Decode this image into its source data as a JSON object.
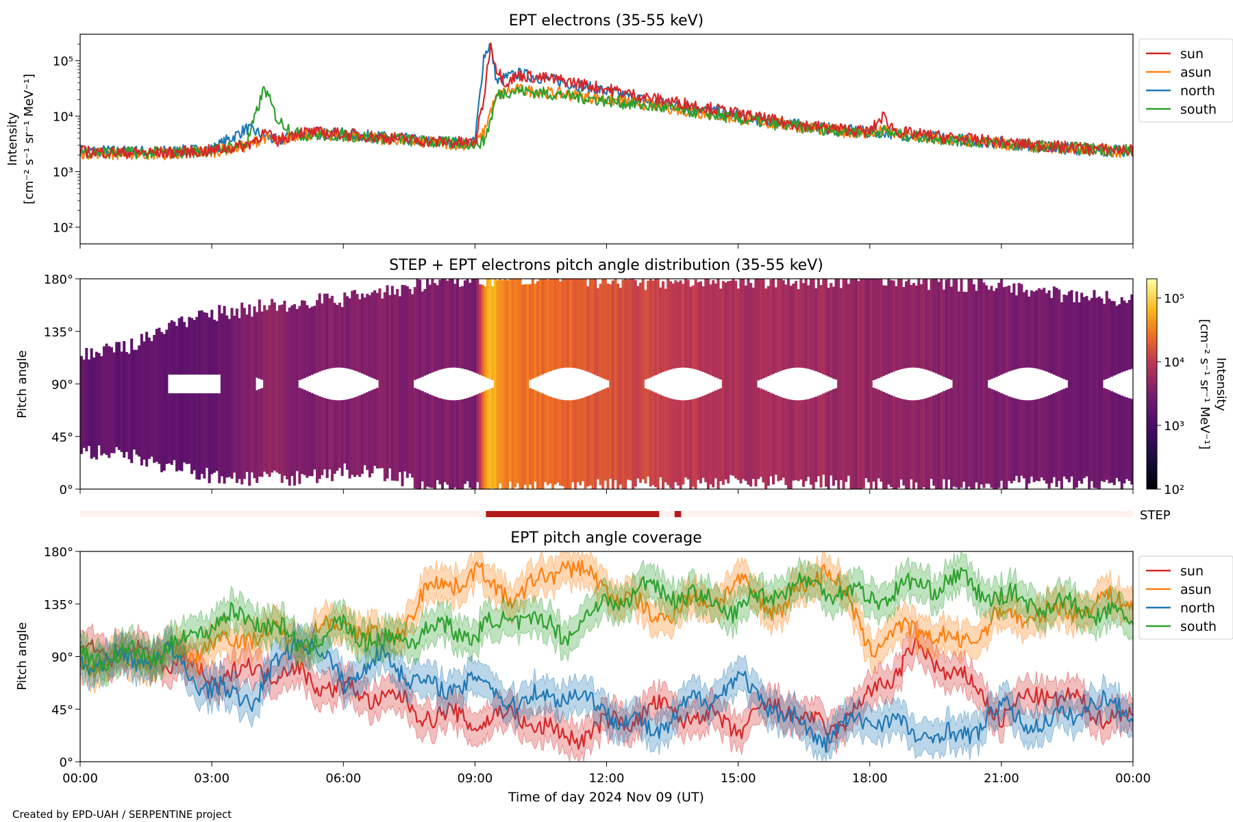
{
  "footer": "Created by EPD-UAH / SERPENTINE project",
  "chart_data": [
    {
      "type": "line",
      "title": "EPT electrons (35-55 keV)",
      "ylabel_lines": [
        "Intensity",
        "[cm⁻² s⁻¹ sr⁻¹ MeV⁻¹]"
      ],
      "yscale": "log",
      "ylim": [
        50,
        300000
      ],
      "yticks": [
        {
          "v": 100,
          "label": "10²"
        },
        {
          "v": 1000,
          "label": "10³"
        },
        {
          "v": 10000,
          "label": "10⁴"
        },
        {
          "v": 100000,
          "label": "10⁵"
        }
      ],
      "x_unit": "hours since 2024-11-09 00:00 UT",
      "xlim": [
        0,
        24
      ],
      "legend_position": "outside-right",
      "series": [
        {
          "name": "sun",
          "color": "#d62728",
          "x": [
            0,
            1,
            2,
            3,
            3.8,
            4.2,
            4.5,
            5,
            6,
            7,
            8,
            9,
            9.2,
            9.35,
            9.5,
            9.7,
            10,
            11,
            12,
            13,
            14,
            15,
            16,
            17,
            18,
            18.3,
            18.6,
            19,
            20,
            21,
            22,
            23,
            24
          ],
          "y": [
            2300,
            2200,
            2200,
            2400,
            3000,
            5000,
            3600,
            5200,
            4800,
            4100,
            3500,
            3300,
            20000,
            200000,
            70000,
            40000,
            55000,
            44000,
            31000,
            21000,
            16000,
            11000,
            7800,
            6200,
            5200,
            10000,
            5300,
            4800,
            4000,
            3400,
            2900,
            2600,
            2400
          ]
        },
        {
          "name": "asun",
          "color": "#ff7f0e",
          "x": [
            0,
            1,
            2,
            3,
            3.8,
            4.2,
            4.5,
            5,
            6,
            7,
            8,
            9,
            9.2,
            9.35,
            9.5,
            9.7,
            10,
            11,
            12,
            13,
            14,
            15,
            16,
            17,
            18,
            18.3,
            18.6,
            19,
            20,
            21,
            22,
            23,
            24
          ],
          "y": [
            2200,
            2100,
            2100,
            2300,
            2900,
            4200,
            3400,
            4800,
            4500,
            3900,
            3300,
            3100,
            5000,
            12000,
            22000,
            28000,
            30000,
            25000,
            20000,
            16000,
            12000,
            9000,
            7000,
            5700,
            4900,
            5500,
            4700,
            4300,
            3700,
            3200,
            2800,
            2500,
            2300
          ]
        },
        {
          "name": "north",
          "color": "#1f77b4",
          "x": [
            0,
            1,
            2,
            3,
            3.8,
            4.2,
            4.5,
            5,
            6,
            7,
            8,
            9,
            9.2,
            9.35,
            9.5,
            9.7,
            10,
            11,
            12,
            13,
            14,
            15,
            16,
            17,
            18,
            18.3,
            18.6,
            19,
            20,
            21,
            22,
            23,
            24
          ],
          "y": [
            2400,
            2300,
            2300,
            2500,
            6000,
            4500,
            3500,
            5000,
            4800,
            4100,
            3500,
            3300,
            120000,
            200000,
            40000,
            50000,
            58000,
            42000,
            28000,
            18000,
            14000,
            10000,
            7500,
            6000,
            5100,
            5300,
            4800,
            4500,
            3800,
            3300,
            2800,
            2500,
            2300
          ]
        },
        {
          "name": "south",
          "color": "#2ca02c",
          "x": [
            0,
            1,
            2,
            3,
            3.8,
            4.2,
            4.5,
            5,
            6,
            7,
            8,
            9,
            9.2,
            9.35,
            9.5,
            9.7,
            10,
            11,
            12,
            13,
            14,
            15,
            16,
            17,
            18,
            18.3,
            18.6,
            19,
            20,
            21,
            22,
            23,
            24
          ],
          "y": [
            2300,
            2200,
            2200,
            2400,
            3200,
            33000,
            8500,
            4600,
            4500,
            4000,
            3400,
            3200,
            3500,
            8000,
            24000,
            27000,
            29000,
            24000,
            19000,
            15000,
            12000,
            9000,
            7000,
            5800,
            5000,
            5400,
            4700,
            4300,
            3700,
            3200,
            2800,
            2600,
            2400
          ]
        }
      ]
    },
    {
      "type": "heatmap",
      "title": "STEP + EPT electrons pitch angle distribution (35-55 keV)",
      "ylabel": "Pitch angle",
      "ylim": [
        0,
        180
      ],
      "yticks": [
        {
          "v": 0,
          "label": "0°"
        },
        {
          "v": 45,
          "label": "45°"
        },
        {
          "v": 90,
          "label": "90°"
        },
        {
          "v": 135,
          "label": "135°"
        },
        {
          "v": 180,
          "label": "180°"
        }
      ],
      "xlim": [
        0,
        24
      ],
      "colormap": "inferno",
      "colorbar": {
        "label_lines": [
          "Intensity",
          "[cm⁻² s⁻¹ sr⁻¹ MeV⁻¹]"
        ],
        "scale": "log",
        "range": [
          100,
          200000
        ],
        "ticks": [
          {
            "v": 100,
            "label": "10²"
          },
          {
            "v": 1000,
            "label": "10³"
          },
          {
            "v": 10000,
            "label": "10⁴"
          },
          {
            "v": 100000,
            "label": "10⁵"
          }
        ]
      },
      "coverage_x": [
        0,
        1,
        2,
        3,
        4,
        5,
        6,
        7,
        8,
        9,
        10,
        11,
        12,
        13,
        14,
        15,
        16,
        17,
        18,
        19,
        20,
        21,
        22,
        23,
        24
      ],
      "coverage_min": [
        32,
        30,
        20,
        10,
        8,
        10,
        15,
        12,
        3,
        0,
        0,
        0,
        2,
        4,
        3,
        8,
        5,
        6,
        3,
        2,
        2,
        4,
        6,
        6,
        4
      ],
      "coverage_max": [
        115,
        120,
        140,
        150,
        155,
        160,
        162,
        168,
        178,
        180,
        180,
        180,
        178,
        177,
        178,
        178,
        178,
        178,
        180,
        178,
        176,
        174,
        168,
        165,
        162
      ],
      "intensity_x": [
        0,
        3,
        4.3,
        5,
        7,
        9,
        9.3,
        9.8,
        11,
        13,
        15,
        18,
        21,
        24
      ],
      "intensity_y": [
        1800,
        1800,
        5000,
        3500,
        3600,
        3200,
        80000,
        30000,
        22000,
        12000,
        7000,
        5000,
        3200,
        2200
      ]
    },
    {
      "type": "heatmap",
      "label": "STEP",
      "colors": {
        "background": "#fff1ec",
        "active": "#b51a1a"
      },
      "segments": [
        [
          9.25,
          13.2
        ],
        [
          13.55,
          13.7
        ]
      ]
    },
    {
      "type": "line",
      "title": "EPT pitch angle coverage",
      "ylabel": "Pitch angle",
      "ylim": [
        0,
        180
      ],
      "yticks": [
        {
          "v": 0,
          "label": "0°"
        },
        {
          "v": 45,
          "label": "45°"
        },
        {
          "v": 90,
          "label": "90°"
        },
        {
          "v": 135,
          "label": "135°"
        },
        {
          "v": 180,
          "label": "180°"
        }
      ],
      "xlim": [
        0,
        24
      ],
      "xlabel": "Time of day 2024 Nov 09 (UT)",
      "xticks": [
        {
          "v": 0,
          "label": "00:00"
        },
        {
          "v": 3,
          "label": "03:00"
        },
        {
          "v": 6,
          "label": "06:00"
        },
        {
          "v": 9,
          "label": "09:00"
        },
        {
          "v": 12,
          "label": "12:00"
        },
        {
          "v": 15,
          "label": "15:00"
        },
        {
          "v": 18,
          "label": "18:00"
        },
        {
          "v": 21,
          "label": "21:00"
        },
        {
          "v": 24,
          "label": "00:00"
        }
      ],
      "legend_position": "outside-right",
      "series": [
        {
          "name": "sun",
          "color": "#d62728",
          "x": [
            0,
            1,
            2,
            3,
            4,
            5,
            6,
            7,
            8,
            9,
            10,
            11,
            12,
            13,
            14,
            15,
            16,
            17,
            18,
            19,
            20,
            21,
            22,
            23,
            24
          ],
          "y": [
            95,
            92,
            88,
            70,
            80,
            75,
            60,
            55,
            40,
            35,
            40,
            20,
            30,
            45,
            40,
            30,
            50,
            25,
            55,
            95,
            75,
            40,
            60,
            45,
            35
          ]
        },
        {
          "name": "asun",
          "color": "#ff7f0e",
          "x": [
            0,
            1,
            2,
            3,
            4,
            5,
            6,
            7,
            8,
            9,
            10,
            11,
            12,
            13,
            14,
            15,
            16,
            17,
            18,
            19,
            20,
            21,
            22,
            23,
            24
          ],
          "y": [
            85,
            88,
            90,
            100,
            110,
            105,
            120,
            100,
            150,
            160,
            140,
            170,
            150,
            125,
            135,
            150,
            130,
            170,
            100,
            115,
            100,
            125,
            125,
            135,
            140
          ]
        },
        {
          "name": "north",
          "color": "#1f77b4",
          "x": [
            0,
            1,
            2,
            3,
            4,
            5,
            6,
            7,
            8,
            9,
            10,
            11,
            12,
            13,
            14,
            15,
            16,
            17,
            18,
            19,
            20,
            21,
            22,
            23,
            24
          ],
          "y": [
            85,
            88,
            92,
            60,
            55,
            110,
            70,
            90,
            60,
            70,
            50,
            60,
            45,
            25,
            50,
            70,
            40,
            20,
            40,
            25,
            20,
            45,
            30,
            50,
            45
          ]
        },
        {
          "name": "south",
          "color": "#2ca02c",
          "x": [
            0,
            1,
            2,
            3,
            4,
            5,
            6,
            7,
            8,
            9,
            10,
            11,
            12,
            13,
            14,
            15,
            16,
            17,
            18,
            19,
            20,
            21,
            22,
            23,
            24
          ],
          "y": [
            90,
            90,
            95,
            120,
            125,
            100,
            115,
            100,
            115,
            110,
            125,
            110,
            135,
            150,
            140,
            130,
            150,
            150,
            140,
            150,
            155,
            140,
            135,
            130,
            120
          ]
        }
      ]
    }
  ]
}
